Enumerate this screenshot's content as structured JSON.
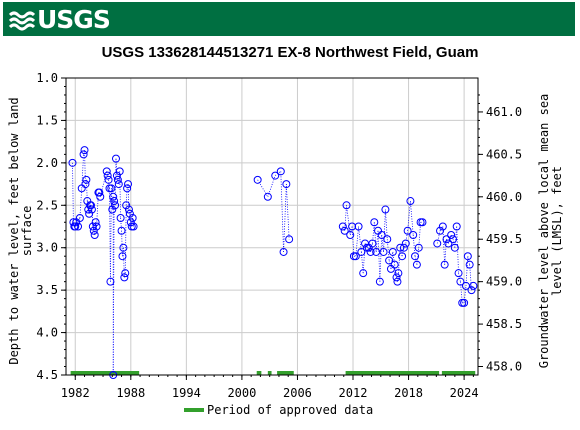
{
  "header": {
    "logo_text": "USGS",
    "logo_icon": "usgs-wave-icon",
    "banner_color": "#006f41"
  },
  "chart_data": {
    "type": "scatter",
    "title": "USGS 133628144513271 EX-8 Northwest Field, Guam",
    "ylabel_left": [
      "Depth to water level, feet below land",
      "surface"
    ],
    "ylabel_right": [
      "Groundwater level above local mean sea",
      "level (LMSL), feet"
    ],
    "xlim": [
      1981,
      2025.5
    ],
    "ylim_left": [
      4.5,
      1.0
    ],
    "ylim_right": [
      457.9,
      461.4
    ],
    "xticks": [
      1982,
      1988,
      1994,
      2000,
      2006,
      2012,
      2018,
      2024
    ],
    "yticks_left": [
      "1.0",
      "1.5",
      "2.0",
      "2.5",
      "3.0",
      "3.5",
      "4.0",
      "4.5"
    ],
    "yticks_right": [
      "461.0",
      "460.5",
      "460.0",
      "459.5",
      "459.0",
      "458.5",
      "458.0"
    ],
    "grid": true,
    "series": [
      {
        "name": "Period of approved data",
        "color": "#33a02c",
        "periods": [
          [
            1981.5,
            1988.9
          ],
          [
            2001.6,
            2002.1
          ],
          [
            2002.8,
            2003.2
          ],
          [
            2003.8,
            2005.6
          ],
          [
            2011.2,
            2021.3
          ],
          [
            2021.6,
            2025.2
          ]
        ]
      }
    ],
    "points_color": "#0000ff",
    "points": [
      [
        1981.7,
        2.0
      ],
      [
        1981.8,
        2.7
      ],
      [
        1981.9,
        2.75
      ],
      [
        1982.0,
        2.75
      ],
      [
        1982.1,
        2.7
      ],
      [
        1982.3,
        2.75
      ],
      [
        1982.5,
        2.65
      ],
      [
        1982.7,
        2.3
      ],
      [
        1982.9,
        1.9
      ],
      [
        1983.0,
        1.85
      ],
      [
        1983.1,
        2.25
      ],
      [
        1983.2,
        2.2
      ],
      [
        1983.3,
        2.45
      ],
      [
        1983.4,
        2.55
      ],
      [
        1983.5,
        2.6
      ],
      [
        1983.6,
        2.5
      ],
      [
        1983.7,
        2.5
      ],
      [
        1983.8,
        2.55
      ],
      [
        1983.9,
        2.75
      ],
      [
        1984.0,
        2.8
      ],
      [
        1984.1,
        2.85
      ],
      [
        1984.2,
        2.7
      ],
      [
        1984.3,
        2.75
      ],
      [
        1984.5,
        2.35
      ],
      [
        1984.6,
        2.35
      ],
      [
        1984.7,
        2.4
      ],
      [
        1985.4,
        2.1
      ],
      [
        1985.5,
        2.15
      ],
      [
        1985.6,
        2.2
      ],
      [
        1985.7,
        2.3
      ],
      [
        1985.8,
        3.4
      ],
      [
        1985.9,
        2.3
      ],
      [
        1986.0,
        2.55
      ],
      [
        1986.1,
        2.4
      ],
      [
        1986.2,
        2.45
      ],
      [
        1986.3,
        2.5
      ],
      [
        1986.4,
        1.95
      ],
      [
        1986.5,
        2.15
      ],
      [
        1986.6,
        2.2
      ],
      [
        1986.7,
        2.25
      ],
      [
        1986.8,
        2.1
      ],
      [
        1986.9,
        2.65
      ],
      [
        1987.0,
        2.8
      ],
      [
        1987.1,
        3.1
      ],
      [
        1987.2,
        3.0
      ],
      [
        1987.3,
        3.35
      ],
      [
        1987.4,
        3.3
      ],
      [
        1987.5,
        2.5
      ],
      [
        1987.6,
        2.3
      ],
      [
        1987.7,
        2.25
      ],
      [
        1987.8,
        2.55
      ],
      [
        1987.9,
        2.6
      ],
      [
        1988.0,
        2.7
      ],
      [
        1988.1,
        2.75
      ],
      [
        1988.2,
        2.65
      ],
      [
        1988.3,
        2.75
      ],
      [
        1986.1,
        4.5
      ],
      [
        2001.7,
        2.2
      ],
      [
        2002.8,
        2.4
      ],
      [
        2003.6,
        2.15
      ],
      [
        2004.2,
        2.1
      ],
      [
        2004.5,
        3.05
      ],
      [
        2004.8,
        2.25
      ],
      [
        2005.1,
        2.9
      ],
      [
        2010.9,
        2.75
      ],
      [
        2011.1,
        2.8
      ],
      [
        2011.3,
        2.5
      ],
      [
        2011.7,
        2.85
      ],
      [
        2011.9,
        2.75
      ],
      [
        2012.1,
        3.1
      ],
      [
        2012.3,
        3.1
      ],
      [
        2012.6,
        2.75
      ],
      [
        2012.9,
        3.05
      ],
      [
        2013.1,
        3.3
      ],
      [
        2013.3,
        2.95
      ],
      [
        2013.5,
        3.0
      ],
      [
        2013.7,
        3.0
      ],
      [
        2013.9,
        3.05
      ],
      [
        2014.1,
        2.95
      ],
      [
        2014.3,
        2.7
      ],
      [
        2014.5,
        3.05
      ],
      [
        2014.7,
        2.8
      ],
      [
        2014.9,
        3.4
      ],
      [
        2015.1,
        2.85
      ],
      [
        2015.3,
        3.05
      ],
      [
        2015.5,
        2.55
      ],
      [
        2015.7,
        2.9
      ],
      [
        2015.9,
        3.15
      ],
      [
        2016.1,
        3.25
      ],
      [
        2016.3,
        3.05
      ],
      [
        2016.5,
        3.2
      ],
      [
        2016.7,
        3.35
      ],
      [
        2016.8,
        3.4
      ],
      [
        2016.9,
        3.3
      ],
      [
        2017.1,
        3.0
      ],
      [
        2017.3,
        3.1
      ],
      [
        2017.5,
        3.0
      ],
      [
        2017.7,
        2.95
      ],
      [
        2017.9,
        2.8
      ],
      [
        2018.2,
        2.45
      ],
      [
        2018.5,
        2.85
      ],
      [
        2018.7,
        3.1
      ],
      [
        2018.9,
        3.2
      ],
      [
        2019.1,
        3.0
      ],
      [
        2019.3,
        2.7
      ],
      [
        2019.5,
        2.7
      ],
      [
        2021.1,
        2.95
      ],
      [
        2021.4,
        2.8
      ],
      [
        2021.7,
        2.75
      ],
      [
        2021.9,
        3.2
      ],
      [
        2022.1,
        2.9
      ],
      [
        2022.3,
        2.95
      ],
      [
        2022.6,
        2.85
      ],
      [
        2022.8,
        2.9
      ],
      [
        2023.0,
        3.0
      ],
      [
        2023.2,
        2.75
      ],
      [
        2023.4,
        3.3
      ],
      [
        2023.6,
        3.4
      ],
      [
        2023.8,
        3.65
      ],
      [
        2024.0,
        3.65
      ],
      [
        2024.2,
        3.45
      ],
      [
        2024.4,
        3.1
      ],
      [
        2024.6,
        3.2
      ],
      [
        2024.8,
        3.5
      ],
      [
        2025.0,
        3.45
      ]
    ]
  },
  "legend": {
    "label": "Period of approved data"
  }
}
